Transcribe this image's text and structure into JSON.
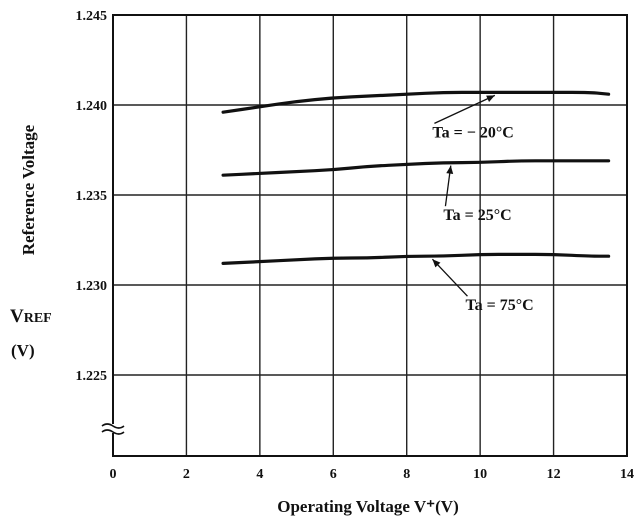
{
  "chart_data": {
    "type": "line",
    "title": "",
    "xlabel": "Operating  Voltage V⁺(V)",
    "ylabel": "Reference Voltage",
    "ylabel_symbol": "V",
    "ylabel_symbol_sub": "REF",
    "ylabel_unit": "(V)",
    "xlim": [
      0,
      14
    ],
    "ylim": [
      1.2205,
      1.245
    ],
    "x_ticks": [
      0,
      2,
      4,
      6,
      8,
      10,
      12,
      14
    ],
    "x_tick_labels": [
      "0",
      "2",
      "4",
      "6",
      "8",
      "10",
      "12",
      "14"
    ],
    "y_ticks": [
      1.225,
      1.23,
      1.235,
      1.24,
      1.245
    ],
    "y_tick_labels": [
      "1.225",
      "1.230",
      "1.235",
      "1.240",
      "1.245"
    ],
    "grid": true,
    "axis_break": "y",
    "series": [
      {
        "name": "Ta = − 20°C",
        "x": [
          3,
          4,
          5,
          6,
          7,
          8,
          9,
          10,
          11,
          12,
          13,
          13.5
        ],
        "y": [
          1.2396,
          1.2399,
          1.2402,
          1.2404,
          1.2405,
          1.2406,
          1.2407,
          1.2407,
          1.2407,
          1.2407,
          1.2407,
          1.2406
        ],
        "annotation": {
          "text": "Ta = − 20°C",
          "arrow_to": [
            10.4,
            1.2407
          ],
          "text_at": [
            8.7,
            1.2382
          ]
        }
      },
      {
        "name": "Ta = 25°C",
        "x": [
          3,
          4,
          5,
          6,
          7,
          8,
          9,
          10,
          11,
          12,
          13,
          13.5
        ],
        "y": [
          1.2361,
          1.2362,
          1.2363,
          1.2364,
          1.2366,
          1.2367,
          1.2368,
          1.2368,
          1.2369,
          1.2369,
          1.2369,
          1.2369
        ],
        "annotation": {
          "text": "Ta = 25°C",
          "arrow_to": [
            9.2,
            1.2368
          ],
          "text_at": [
            9.0,
            1.2336
          ]
        }
      },
      {
        "name": "Ta = 75°C",
        "x": [
          3,
          4,
          5,
          6,
          7,
          8,
          9,
          10,
          11,
          12,
          13,
          13.5
        ],
        "y": [
          1.2312,
          1.2313,
          1.2314,
          1.2315,
          1.2315,
          1.2316,
          1.2316,
          1.2317,
          1.2317,
          1.2317,
          1.2316,
          1.2316
        ],
        "annotation": {
          "text": "Ta = 75°C",
          "arrow_to": [
            8.7,
            1.2316
          ],
          "text_at": [
            9.6,
            1.2286
          ]
        }
      }
    ]
  }
}
